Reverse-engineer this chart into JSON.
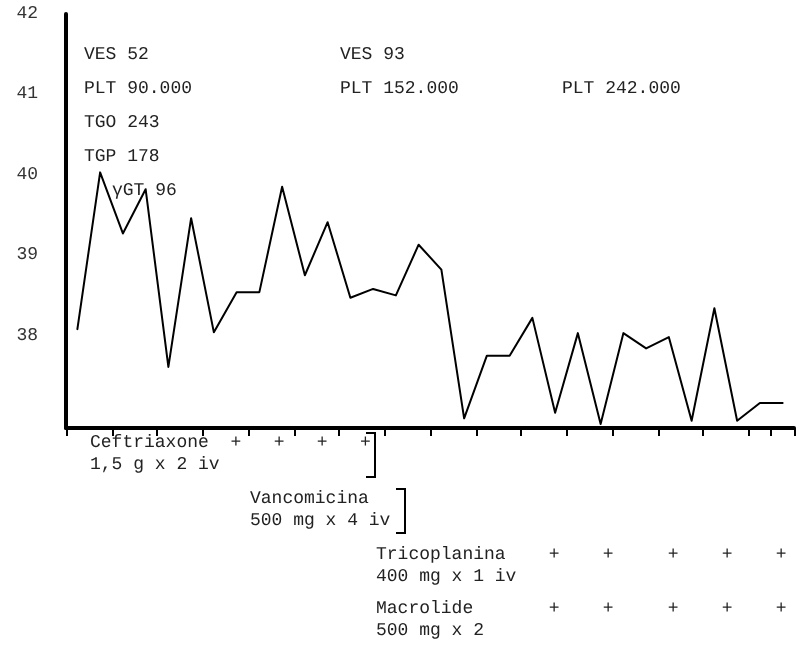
{
  "chart_data": {
    "type": "line",
    "color": "#000000",
    "marker": "none",
    "line_style": "solid",
    "grid": false,
    "tick_labels": "y",
    "categories": [
      null,
      null,
      null,
      null,
      null,
      null,
      null,
      null,
      null,
      null,
      null,
      null,
      null,
      null,
      null,
      null,
      null,
      null,
      null,
      null,
      null,
      null,
      null,
      null,
      null,
      null,
      null,
      null,
      null,
      null,
      null,
      null
    ],
    "values": [
      38.08,
      40.03,
      39.27,
      39.82,
      37.61,
      39.46,
      38.04,
      38.54,
      38.54,
      39.85,
      38.75,
      39.41,
      38.47,
      38.58,
      38.5,
      39.13,
      38.82,
      36.97,
      37.75,
      37.75,
      38.22,
      37.04,
      38.03,
      36.9,
      38.03,
      37.84,
      37.98,
      36.94,
      38.34,
      36.94,
      37.16,
      37.16
    ],
    "ylim": [
      36.85,
      42
    ],
    "yticks": [
      38,
      39,
      40,
      41,
      42
    ],
    "annotations": [
      "VES 52",
      "PLT 90.000",
      "TGO 243",
      "TGP 178",
      "γGT 96",
      "VES 93",
      "PLT 152.000",
      "PLT 242.000",
      "Ceftriaxone  +   +   +   +\n1,5 g x 2 iv",
      "Vancomicina\n500 mg x 4 iv",
      "Tricoplanina    +    +     +    +    +\n400 mg x 1 iv",
      "Macrolide       +    +     +    +    +\n500 mg x 2"
    ]
  }
}
